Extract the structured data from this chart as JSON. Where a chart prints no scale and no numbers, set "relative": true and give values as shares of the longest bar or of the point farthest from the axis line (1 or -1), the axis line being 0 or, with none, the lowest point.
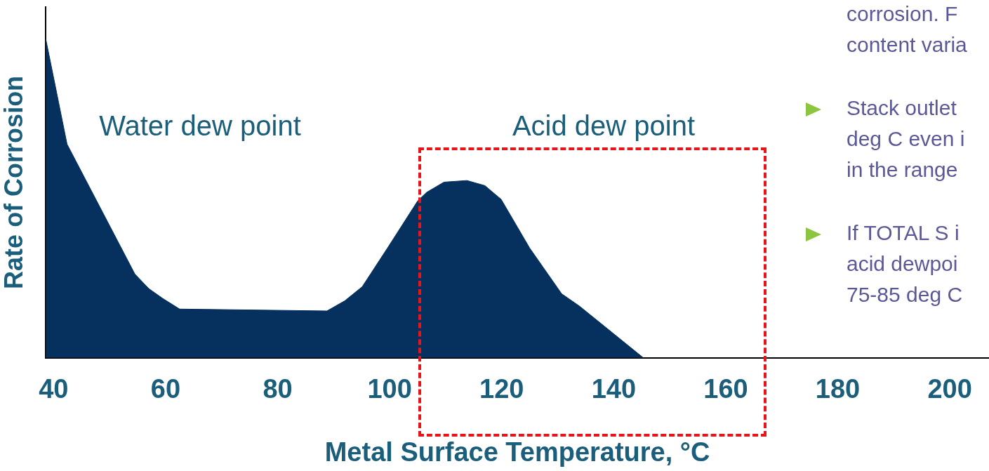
{
  "chart_data": {
    "type": "area",
    "relative": true,
    "xlabel": "Metal Surface Temperature, °C",
    "ylabel": "Rate of Corrosion",
    "x": [
      38.6,
      42.4,
      54.5,
      57.0,
      59.5,
      62.5,
      88.8,
      92.0,
      95.1,
      99.6,
      105.0,
      106.6,
      109.7,
      113.8,
      117.0,
      119.9,
      125.0,
      130.7,
      133.9,
      145.3
    ],
    "series": [
      {
        "color": "#06305e",
        "values": [
          1.0,
          0.67,
          0.263,
          0.217,
          0.186,
          0.153,
          0.147,
          0.179,
          0.223,
          0.344,
          0.492,
          0.519,
          0.551,
          0.556,
          0.54,
          0.497,
          0.344,
          0.201,
          0.162,
          0
        ]
      }
    ],
    "xlim": [
      38.6,
      207
    ],
    "xticks": [
      40,
      60,
      80,
      100,
      120,
      140,
      160,
      180,
      200
    ],
    "grid": false,
    "legend": false,
    "marker": "none",
    "annotations": [
      "Water dew point",
      "Acid dew point",
      "corrosion. F",
      "content varia",
      "Stack outlet",
      "deg C even i",
      "in the range",
      "If TOTAL S i",
      "acid dewpoi",
      "75-85 deg C"
    ]
  }
}
